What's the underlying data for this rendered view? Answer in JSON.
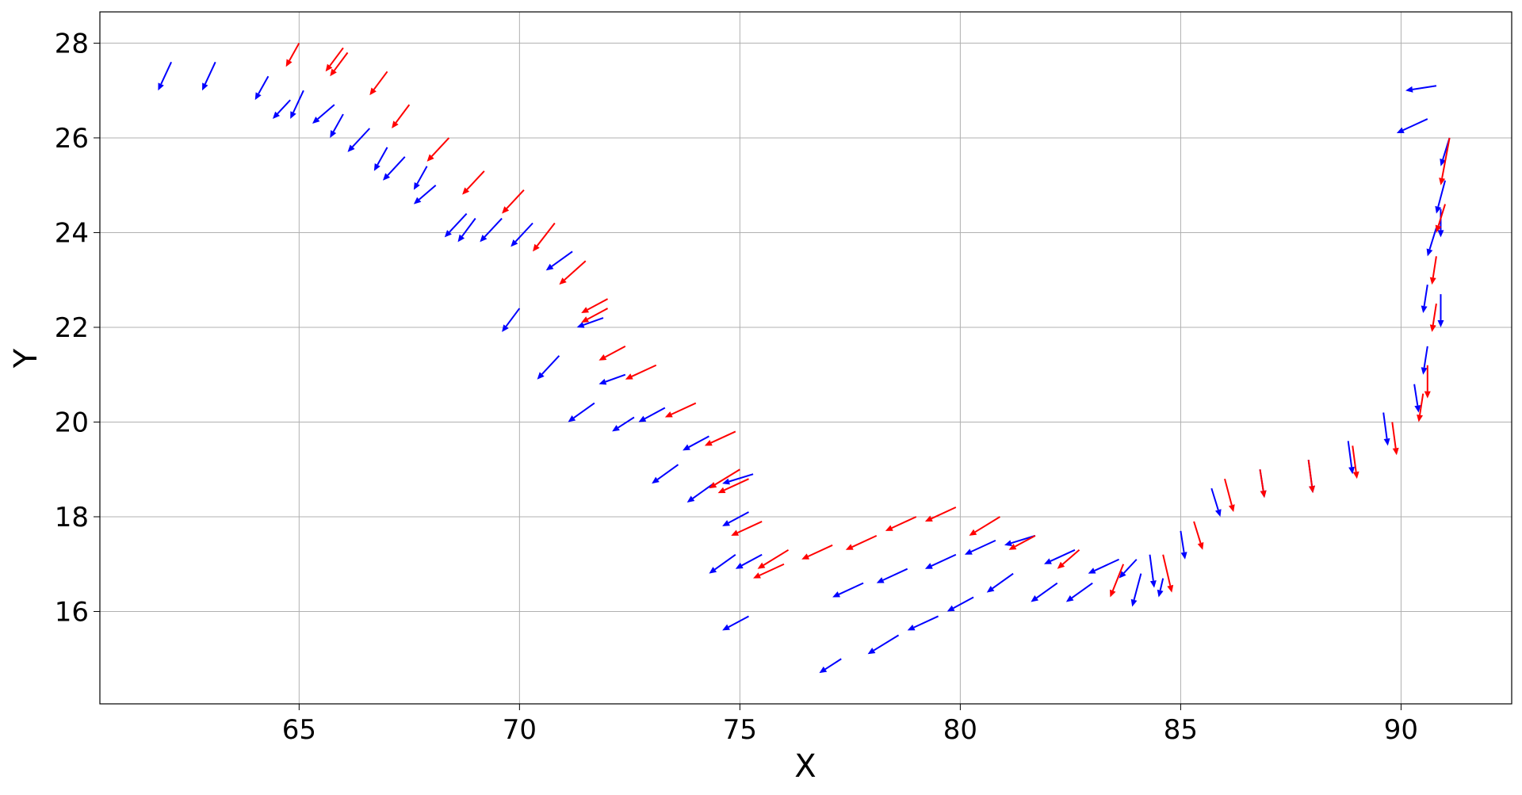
{
  "chart_data": {
    "type": "quiver",
    "xlabel": "X",
    "ylabel": "Y",
    "xlim": [
      60.48,
      92.51
    ],
    "ylim": [
      14.05,
      28.66
    ],
    "xticks": [
      65,
      70,
      75,
      80,
      85,
      90
    ],
    "yticks": [
      16,
      18,
      20,
      22,
      24,
      26,
      28
    ],
    "grid": true,
    "series": [
      {
        "color": "#0000ff",
        "x": [
          62.1,
          63.1,
          64.3,
          64.8,
          65.1,
          65.8,
          66.0,
          66.6,
          67.0,
          67.4,
          67.9,
          68.1,
          68.8,
          69.0,
          69.6,
          70.3,
          71.2,
          70.0,
          70.9,
          71.9,
          72.4,
          71.7,
          72.6,
          73.3,
          74.3,
          73.6,
          74.4,
          75.3,
          75.2,
          74.9,
          75.5,
          75.2,
          77.8,
          77.3,
          78.6,
          79.5,
          78.8,
          79.9,
          80.3,
          80.8,
          81.2,
          81.7,
          82.2,
          82.6,
          83.0,
          83.6,
          84.0,
          84.3,
          84.1,
          84.6,
          85.0,
          85.7,
          86.8,
          87.9,
          88.8,
          89.6,
          90.3,
          90.6,
          90.9,
          90.6,
          90.8,
          90.9,
          91.0,
          91.1,
          90.6,
          90.8
        ],
        "y": [
          27.6,
          27.6,
          27.3,
          26.8,
          27.0,
          26.7,
          26.5,
          26.2,
          25.8,
          25.6,
          25.4,
          25.0,
          24.4,
          24.3,
          24.3,
          24.2,
          23.6,
          22.4,
          21.4,
          22.2,
          21.0,
          20.4,
          20.1,
          20.3,
          19.7,
          19.1,
          18.7,
          18.9,
          18.1,
          17.2,
          17.2,
          15.9,
          16.6,
          15.0,
          15.5,
          15.9,
          16.9,
          17.2,
          16.3,
          17.5,
          16.8,
          17.6,
          16.6,
          17.3,
          16.6,
          17.1,
          17.1,
          17.2,
          16.8,
          16.7,
          17.7,
          18.6,
          19.0,
          19.2,
          19.6,
          20.2,
          20.8,
          21.6,
          22.7,
          22.9,
          24.1,
          24.5,
          25.1,
          26.0,
          26.4,
          27.1
        ],
        "u": [
          -0.3,
          -0.3,
          -0.3,
          -0.4,
          -0.3,
          -0.5,
          -0.3,
          -0.5,
          -0.3,
          -0.5,
          -0.3,
          -0.5,
          -0.5,
          -0.4,
          -0.5,
          -0.5,
          -0.6,
          -0.4,
          -0.5,
          -0.6,
          -0.6,
          -0.6,
          -0.5,
          -0.6,
          -0.6,
          -0.6,
          -0.6,
          -0.7,
          -0.6,
          -0.6,
          -0.6,
          -0.6,
          -0.7,
          -0.5,
          -0.7,
          -0.7,
          -0.7,
          -0.7,
          -0.6,
          -0.7,
          -0.6,
          -0.7,
          -0.6,
          -0.7,
          -0.6,
          -0.7,
          -0.4,
          0.1,
          -0.2,
          -0.1,
          0.1,
          0.2,
          0.1,
          0.1,
          0.1,
          0.1,
          0.1,
          -0.1,
          0.0,
          -0.1,
          -0.2,
          0.0,
          -0.2,
          -0.2,
          -0.7,
          -0.7
        ],
        "v": [
          -0.6,
          -0.6,
          -0.5,
          -0.4,
          -0.6,
          -0.4,
          -0.5,
          -0.5,
          -0.5,
          -0.5,
          -0.5,
          -0.4,
          -0.5,
          -0.5,
          -0.5,
          -0.5,
          -0.4,
          -0.5,
          -0.5,
          -0.2,
          -0.2,
          -0.4,
          -0.3,
          -0.3,
          -0.3,
          -0.4,
          -0.4,
          -0.2,
          -0.3,
          -0.4,
          -0.3,
          -0.3,
          -0.3,
          -0.3,
          -0.4,
          -0.3,
          -0.3,
          -0.3,
          -0.3,
          -0.3,
          -0.4,
          -0.2,
          -0.4,
          -0.3,
          -0.4,
          -0.3,
          -0.4,
          -0.7,
          -0.7,
          -0.4,
          -0.6,
          -0.6,
          -0.6,
          -0.7,
          -0.7,
          -0.7,
          -0.6,
          -0.6,
          -0.7,
          -0.6,
          -0.6,
          -0.6,
          -0.7,
          -0.6,
          -0.3,
          -0.1
        ]
      },
      {
        "color": "#ff0000",
        "x": [
          65.0,
          66.1,
          66.0,
          67.0,
          67.5,
          68.4,
          69.2,
          70.1,
          70.8,
          71.5,
          72.0,
          72.0,
          72.4,
          73.1,
          74.0,
          74.9,
          75.0,
          75.2,
          75.5,
          76.1,
          76.0,
          77.1,
          78.1,
          79.0,
          79.9,
          80.9,
          81.7,
          82.7,
          83.7,
          84.6,
          85.3,
          86.0,
          86.8,
          87.9,
          88.9,
          89.8,
          90.5,
          90.6,
          90.8,
          90.8,
          91.0,
          91.1
        ],
        "y": [
          28.0,
          27.8,
          27.9,
          27.4,
          26.7,
          26.0,
          25.3,
          24.9,
          24.2,
          23.4,
          22.6,
          22.4,
          21.6,
          21.2,
          20.4,
          19.8,
          19.0,
          18.8,
          17.9,
          17.3,
          17.0,
          17.4,
          17.6,
          18.0,
          18.2,
          18.0,
          17.6,
          17.3,
          17.0,
          17.2,
          17.9,
          18.8,
          19.0,
          19.2,
          19.5,
          20.0,
          20.6,
          21.2,
          22.5,
          23.5,
          24.6,
          26.0
        ],
        "u": [
          -0.3,
          -0.4,
          -0.4,
          -0.4,
          -0.4,
          -0.5,
          -0.5,
          -0.5,
          -0.5,
          -0.6,
          -0.6,
          -0.6,
          -0.6,
          -0.7,
          -0.7,
          -0.7,
          -0.7,
          -0.7,
          -0.7,
          -0.7,
          -0.7,
          -0.7,
          -0.7,
          -0.7,
          -0.7,
          -0.7,
          -0.6,
          -0.5,
          -0.3,
          0.2,
          0.2,
          0.2,
          0.1,
          0.1,
          0.1,
          0.1,
          -0.1,
          0.0,
          -0.1,
          -0.1,
          -0.2,
          -0.2
        ],
        "v": [
          -0.5,
          -0.5,
          -0.5,
          -0.5,
          -0.5,
          -0.5,
          -0.5,
          -0.5,
          -0.6,
          -0.5,
          -0.3,
          -0.3,
          -0.3,
          -0.3,
          -0.3,
          -0.3,
          -0.4,
          -0.3,
          -0.3,
          -0.4,
          -0.3,
          -0.3,
          -0.3,
          -0.3,
          -0.3,
          -0.4,
          -0.3,
          -0.4,
          -0.7,
          -0.8,
          -0.6,
          -0.7,
          -0.6,
          -0.7,
          -0.7,
          -0.7,
          -0.6,
          -0.7,
          -0.6,
          -0.6,
          -0.6,
          -1.0
        ]
      }
    ]
  }
}
